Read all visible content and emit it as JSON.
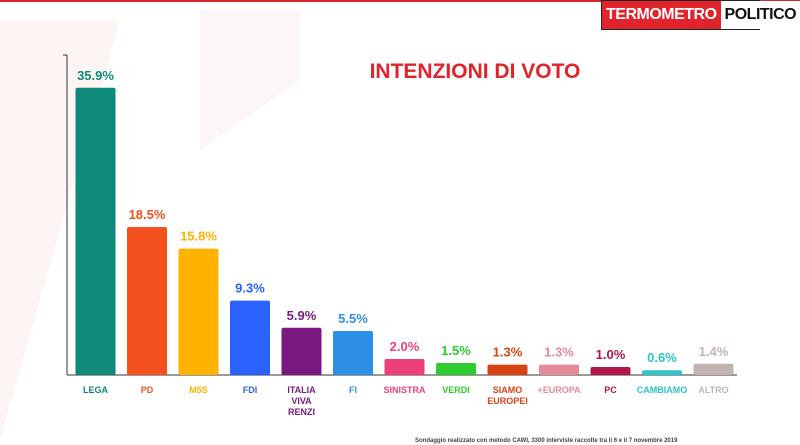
{
  "brand": {
    "logo_part1": "TERMOMETRO",
    "logo_part2": "POLITICO"
  },
  "footnote": "Sondaggio realizzato con metodo CAWI, 3300 interviste raccolte tra il 6 e il 7 novembre 2019",
  "chart_data": {
    "type": "bar",
    "title": "INTENZIONI DI VOTO",
    "xlabel": "",
    "ylabel": "",
    "ylim": [
      0,
      40
    ],
    "grid": false,
    "categories": [
      "LEGA",
      "PD",
      "M5S",
      "FDI",
      "ITALIA VIVA RENZI",
      "FI",
      "SINISTRA",
      "VERDI",
      "SIAMO EUROPEI",
      "+EUROPA",
      "PC",
      "CAMBIAMO",
      "ALTRO"
    ],
    "category_lines": [
      [
        "LEGA"
      ],
      [
        "PD"
      ],
      [
        "M5S"
      ],
      [
        "FDI"
      ],
      [
        "ITALIA",
        "VIVA",
        "RENZI"
      ],
      [
        "FI"
      ],
      [
        "SINISTRA"
      ],
      [
        "VERDI"
      ],
      [
        "SIAMO",
        "EUROPEI"
      ],
      [
        "+EUROPA"
      ],
      [
        "PC"
      ],
      [
        "CAMBIAMO"
      ],
      [
        "ALTRO"
      ]
    ],
    "values": [
      35.9,
      18.5,
      15.8,
      9.3,
      5.9,
      5.5,
      2.0,
      1.5,
      1.3,
      1.3,
      1.0,
      0.6,
      1.4
    ],
    "value_labels": [
      "35.9%",
      "18.5%",
      "15.8%",
      "9.3%",
      "5.9%",
      "5.5%",
      "2.0%",
      "1.5%",
      "1.3%",
      "1.3%",
      "1.0%",
      "0.6%",
      "1.4%"
    ],
    "colors": [
      "#0f8a78",
      "#f4511e",
      "#ffb300",
      "#2962ff",
      "#7b1a7e",
      "#2e8fe6",
      "#ec407a",
      "#2ecc2e",
      "#d84315",
      "#e38b99",
      "#b0174a",
      "#2ec4c9",
      "#c4b3b3"
    ],
    "bar_value_colors": [
      "#0f8a78",
      "#f4511e",
      "#ffb300",
      "#2962ff",
      "#7b1a7e",
      "#2e8fe6",
      "#ec407a",
      "#2ecc2e",
      "#d84315",
      "#e38b99",
      "#b0174a",
      "#2ec4c9",
      "#c4b3b3"
    ]
  }
}
